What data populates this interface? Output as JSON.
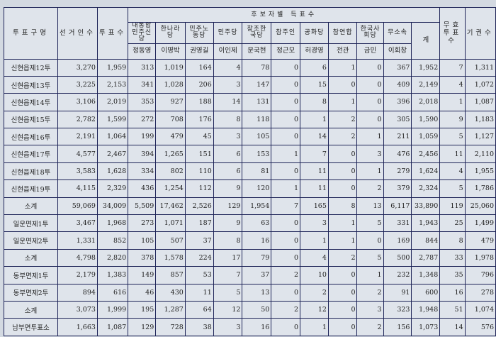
{
  "table": {
    "headers": {
      "district": "투표구명",
      "electors": "선거인수",
      "votes": "투표수",
      "group": "후보자별 득표수",
      "total": "계",
      "invalid": "무효투표수",
      "abstain": "기권수"
    },
    "candidates": [
      {
        "party": "대통합민주신당",
        "name": "정동영"
      },
      {
        "party": "한나라당",
        "name": "이명박"
      },
      {
        "party": "민주노동당",
        "name": "권영길"
      },
      {
        "party": "민주당",
        "name": "이인제"
      },
      {
        "party": "창조한국당",
        "name": "문국현"
      },
      {
        "party": "참주인",
        "name": "정근모"
      },
      {
        "party": "공화당",
        "name": "허경영"
      },
      {
        "party": "참연합",
        "name": "전관"
      },
      {
        "party": "한국사회당",
        "name": "금민"
      },
      {
        "party": "무소속",
        "name": "이회창"
      }
    ],
    "rows": [
      [
        "신현읍제12투",
        "3,270",
        "1,959",
        "313",
        "1,019",
        "164",
        "4",
        "78",
        "0",
        "6",
        "1",
        "0",
        "367",
        "1,952",
        "7",
        "1,311"
      ],
      [
        "신현읍제13투",
        "3,225",
        "2,153",
        "341",
        "1,028",
        "206",
        "3",
        "147",
        "0",
        "15",
        "0",
        "0",
        "409",
        "2,149",
        "4",
        "1,072"
      ],
      [
        "신현읍제14투",
        "3,106",
        "2,019",
        "353",
        "927",
        "188",
        "14",
        "131",
        "0",
        "8",
        "1",
        "0",
        "396",
        "2,018",
        "1",
        "1,087"
      ],
      [
        "신현읍제15투",
        "2,782",
        "1,599",
        "272",
        "708",
        "176",
        "8",
        "118",
        "0",
        "1",
        "2",
        "0",
        "305",
        "1,590",
        "9",
        "1,183"
      ],
      [
        "신현읍제16투",
        "2,191",
        "1,064",
        "199",
        "479",
        "45",
        "3",
        "105",
        "0",
        "14",
        "2",
        "1",
        "211",
        "1,059",
        "5",
        "1,127"
      ],
      [
        "신현읍제17투",
        "4,577",
        "2,467",
        "394",
        "1,265",
        "151",
        "6",
        "153",
        "1",
        "7",
        "0",
        "3",
        "476",
        "2,456",
        "11",
        "2,110"
      ],
      [
        "신현읍제18투",
        "3,583",
        "1,628",
        "334",
        "802",
        "110",
        "6",
        "81",
        "0",
        "11",
        "0",
        "1",
        "279",
        "1,624",
        "4",
        "1,955"
      ],
      [
        "신현읍제19투",
        "4,115",
        "2,329",
        "436",
        "1,254",
        "112",
        "9",
        "120",
        "1",
        "11",
        "0",
        "2",
        "379",
        "2,324",
        "5",
        "1,786"
      ],
      [
        "소계",
        "59,069",
        "34,009",
        "5,509",
        "17,462",
        "2,526",
        "129",
        "1,954",
        "7",
        "165",
        "8",
        "13",
        "6,117",
        "33,890",
        "119",
        "25,060"
      ],
      [
        "일운면제1투",
        "3,467",
        "1,968",
        "273",
        "1,071",
        "187",
        "9",
        "63",
        "0",
        "3",
        "1",
        "5",
        "331",
        "1,943",
        "25",
        "1,499"
      ],
      [
        "일운면제2투",
        "1,331",
        "852",
        "105",
        "507",
        "37",
        "8",
        "16",
        "0",
        "1",
        "1",
        "0",
        "169",
        "844",
        "8",
        "479"
      ],
      [
        "소계",
        "4,798",
        "2,820",
        "378",
        "1,578",
        "224",
        "17",
        "79",
        "0",
        "4",
        "2",
        "5",
        "500",
        "2,787",
        "33",
        "1,978"
      ],
      [
        "동부면제1투",
        "2,179",
        "1,383",
        "149",
        "857",
        "53",
        "7",
        "37",
        "2",
        "10",
        "0",
        "1",
        "232",
        "1,348",
        "35",
        "796"
      ],
      [
        "동부면제2투",
        "894",
        "616",
        "46",
        "430",
        "11",
        "5",
        "13",
        "0",
        "2",
        "0",
        "2",
        "91",
        "600",
        "16",
        "278"
      ],
      [
        "소계",
        "3,073",
        "1,999",
        "195",
        "1,287",
        "64",
        "12",
        "50",
        "2",
        "12",
        "0",
        "3",
        "323",
        "1,948",
        "51",
        "1,074"
      ],
      [
        "남부면투표소",
        "1,663",
        "1,087",
        "129",
        "728",
        "38",
        "3",
        "16",
        "0",
        "1",
        "0",
        "2",
        "156",
        "1,073",
        "14",
        "576"
      ]
    ]
  }
}
